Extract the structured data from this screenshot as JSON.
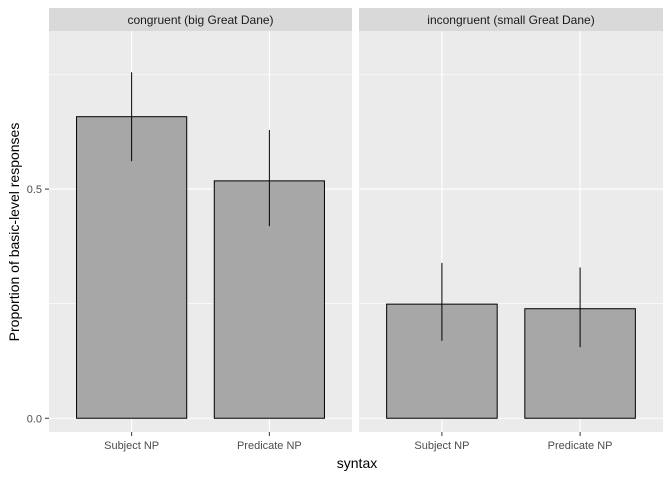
{
  "chart_data": {
    "type": "bar",
    "facet_var": "",
    "xlabel": "syntax",
    "ylabel": "Proportion of basic-level responses",
    "ylim": [
      -0.03,
      0.845
    ],
    "y_ticks": [
      0.0,
      0.5
    ],
    "y_tick_labels": [
      "0.0",
      "0.5"
    ],
    "minor_y_gridlines": [
      0.25,
      0.75
    ],
    "categories": [
      "Subject NP",
      "Predicate NP"
    ],
    "grid": true,
    "colors": {
      "bar_fill": "#a3a3a3",
      "bar_stroke": "#000000",
      "panel_bg": "#ebebeb",
      "strip_bg": "#d9d9d9",
      "gridline": "#ffffff",
      "errorbar": "#000000"
    },
    "panels": [
      {
        "label": "congruent (big Great Dane)",
        "values": [
          0.658,
          0.518
        ],
        "ci_low": [
          0.561,
          0.419
        ],
        "ci_high": [
          0.755,
          0.629
        ]
      },
      {
        "label": "incongruent (small Great Dane)",
        "values": [
          0.249,
          0.239
        ],
        "ci_low": [
          0.169,
          0.155
        ],
        "ci_high": [
          0.339,
          0.329
        ]
      }
    ]
  }
}
